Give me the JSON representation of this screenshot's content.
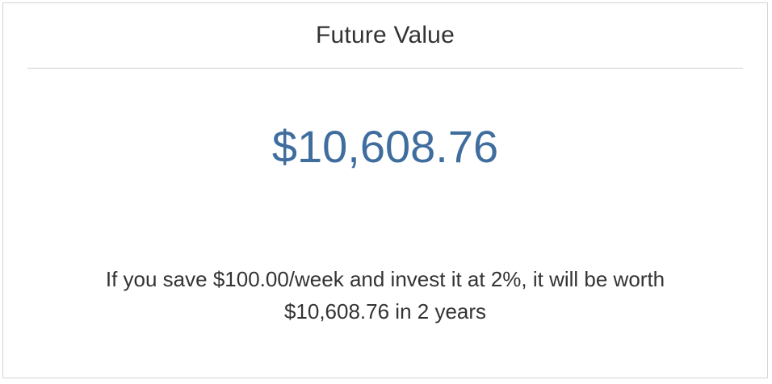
{
  "card": {
    "title": "Future Value",
    "value": "$10,608.76",
    "description": "If you save $100.00/week and invest it at 2%, it will be worth $10,608.76 in 2 years"
  },
  "colors": {
    "accent": "#3e6d9e",
    "text": "#333333",
    "border": "#d4d4d4"
  }
}
